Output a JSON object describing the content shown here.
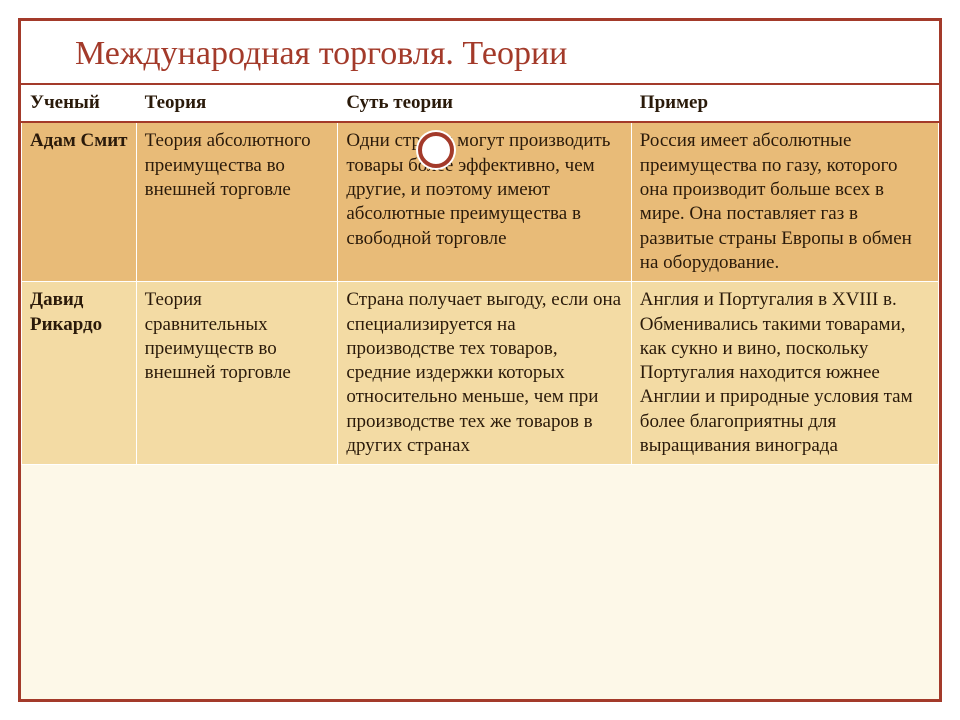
{
  "title": "Международная торговля. Теории",
  "columns": [
    "Ученый",
    "Теория",
    "Суть теории",
    "Пример"
  ],
  "rows": [
    {
      "scientist": "Адам Смит",
      "theory": "Теория абсолютного преимущества во внешней торговле",
      "essence": "Одни страны могут производить товары более эффективно, чем другие, и поэтому имеют абсолютные преимущества в свободной торговле",
      "example": "Россия имеет абсолютные преимущества по газу, которого она производит больше всех в мире. Она поставляет газ в развитые страны Европы в обмен на оборудование."
    },
    {
      "scientist": "Давид Рикардо",
      "theory": "Теория сравнительных преимуществ во внешней торговле",
      "essence": "Страна получает выгоду, если она специализируется на производстве тех товаров, средние издержки которых относительно меньше, чем при производстве тех же товаров в других странах",
      "example": "Англия и Португалия в XVIII в. Обменивались такими товарами, как сукно и вино, поскольку Португалия находится южнее Англии и природные условия там более благоприятны для выращивания винограда"
    }
  ],
  "colors": {
    "accent": "#a33a2a",
    "row_a": "#e8bb78",
    "row_b": "#f3dba4",
    "frame_bg": "#fdf8e8"
  },
  "col_widths_pct": [
    12.5,
    22,
    32,
    33.5
  ],
  "title_fontsize": 34,
  "cell_fontsize": 19
}
